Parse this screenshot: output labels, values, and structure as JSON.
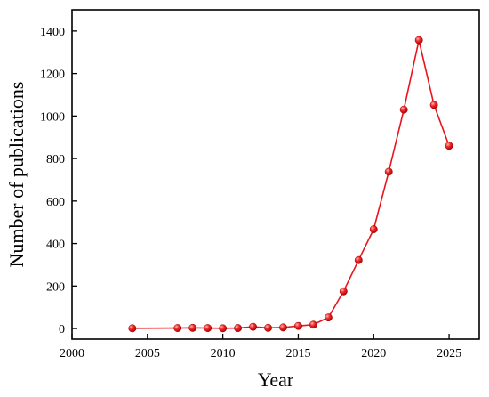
{
  "chart_data": {
    "type": "line",
    "xlabel": "Year",
    "ylabel": "Number of publications",
    "xlim": [
      2000,
      2027
    ],
    "ylim": [
      -50,
      1500
    ],
    "xticks": [
      2000,
      2005,
      2010,
      2015,
      2020,
      2025
    ],
    "yticks": [
      0,
      200,
      400,
      600,
      800,
      1000,
      1200,
      1400
    ],
    "grid": false,
    "series": [
      {
        "color": "#e8141c",
        "x": [
          2004,
          2007,
          2008,
          2009,
          2010,
          2011,
          2012,
          2013,
          2014,
          2015,
          2016,
          2017,
          2018,
          2019,
          2020,
          2021,
          2022,
          2023,
          2024,
          2025
        ],
        "y": [
          1,
          2,
          3,
          2,
          1,
          2,
          8,
          3,
          5,
          12,
          18,
          52,
          175,
          322,
          467,
          738,
          1030,
          1357,
          1052,
          860
        ]
      }
    ]
  }
}
